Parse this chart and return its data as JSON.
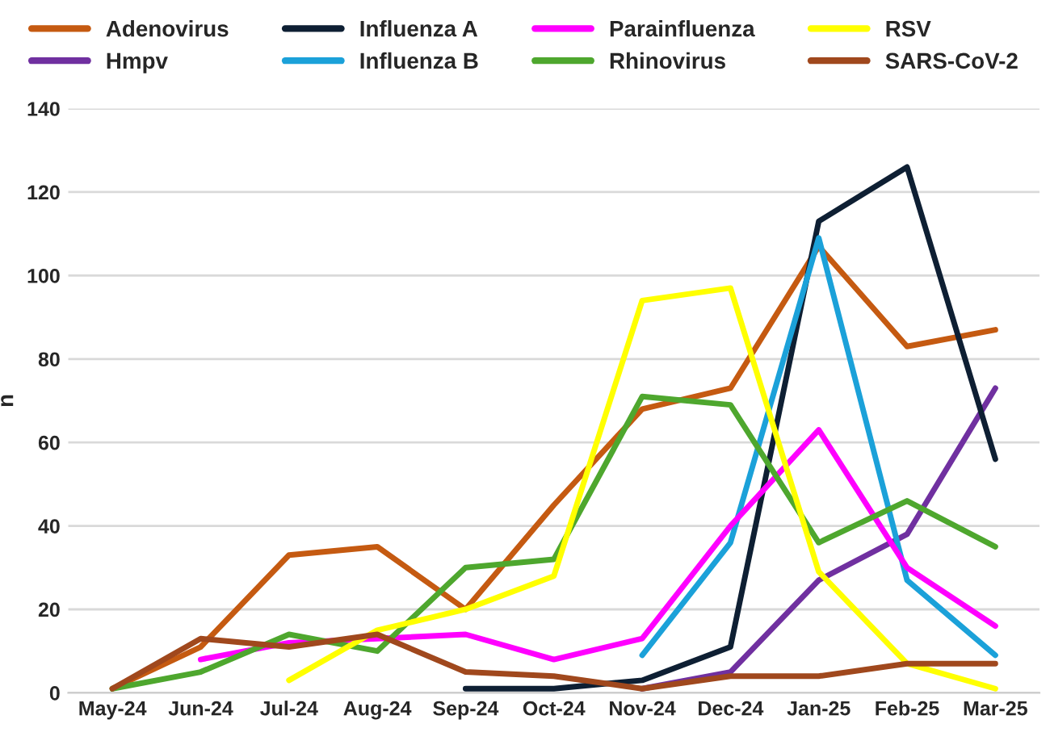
{
  "chart_data": {
    "type": "line",
    "ylabel": "n",
    "categories": [
      "May-24",
      "Jun-24",
      "Jul-24",
      "Aug-24",
      "Sep-24",
      "Oct-24",
      "Nov-24",
      "Dec-24",
      "Jan-25",
      "Feb-25",
      "Mar-25"
    ],
    "series": [
      {
        "name": "Adenovirus",
        "color": "#c55a11",
        "values": [
          1,
          11,
          33,
          35,
          20,
          45,
          68,
          73,
          107,
          83,
          87
        ]
      },
      {
        "name": "Hmpv",
        "color": "#7030a0",
        "values": [
          null,
          null,
          null,
          null,
          null,
          null,
          1,
          5,
          27,
          38,
          73
        ]
      },
      {
        "name": "Influenza A",
        "color": "#0e1f33",
        "values": [
          null,
          null,
          null,
          null,
          1,
          1,
          3,
          11,
          113,
          126,
          56
        ]
      },
      {
        "name": "Influenza B",
        "color": "#1ba1d9",
        "values": [
          null,
          null,
          null,
          null,
          null,
          null,
          9,
          36,
          109,
          27,
          9
        ]
      },
      {
        "name": "Parainfluenza",
        "color": "#ff00ff",
        "values": [
          null,
          8,
          12,
          13,
          14,
          8,
          13,
          40,
          63,
          30,
          16
        ]
      },
      {
        "name": "Rhinovirus",
        "color": "#4ea72e",
        "values": [
          1,
          5,
          14,
          10,
          30,
          32,
          71,
          69,
          36,
          46,
          35
        ]
      },
      {
        "name": "RSV",
        "color": "#ffff00",
        "values": [
          null,
          null,
          3,
          15,
          20,
          28,
          94,
          97,
          29,
          7,
          1
        ]
      },
      {
        "name": "SARS-CoV-2",
        "color": "#a0481d",
        "values": [
          1,
          13,
          11,
          14,
          5,
          4,
          1,
          4,
          4,
          7,
          7
        ]
      }
    ],
    "ylim": [
      0,
      140
    ],
    "yticks": [
      0,
      20,
      40,
      60,
      80,
      100,
      120,
      140
    ],
    "grid": "y",
    "legend": "top",
    "marker": "none",
    "line_style": "solid"
  }
}
